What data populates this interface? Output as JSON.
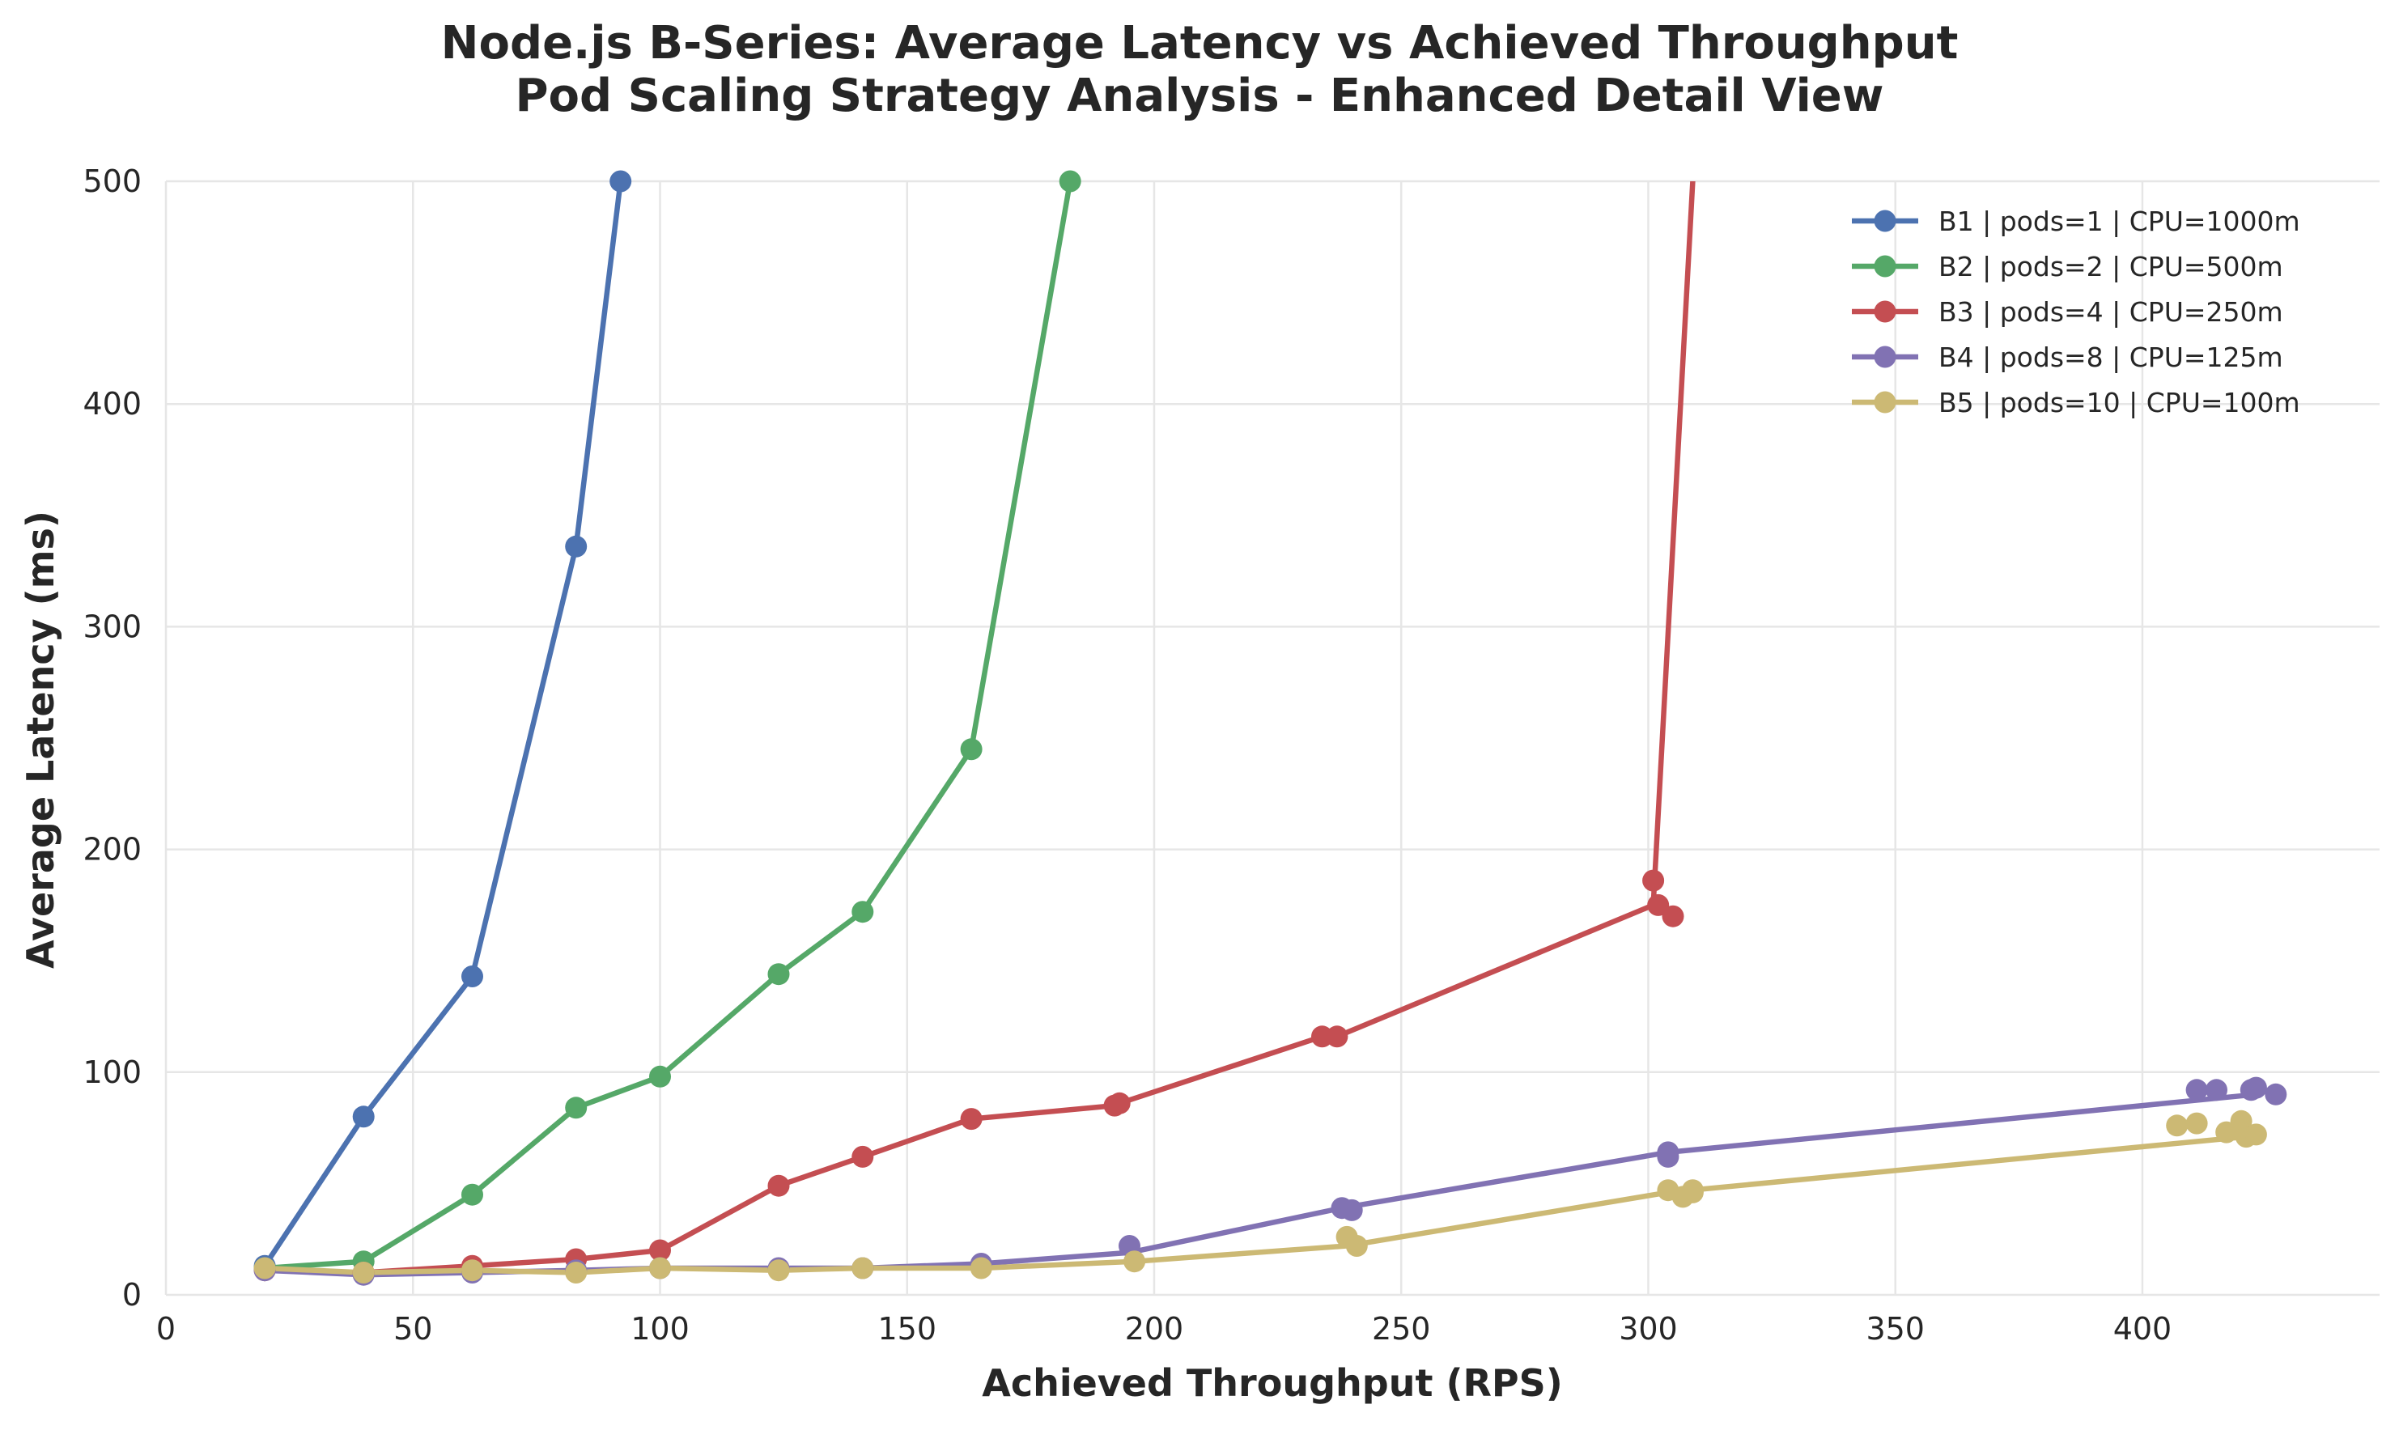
{
  "chart_data": {
    "type": "line",
    "title": "Node.js B-Series: Average Latency vs Achieved Throughput",
    "subtitle": "Pod Scaling Strategy Analysis - Enhanced Detail View",
    "xlabel": "Achieved Throughput (RPS)",
    "ylabel": "Average Latency (ms)",
    "xlim": [
      0,
      448
    ],
    "ylim": [
      0,
      500
    ],
    "xticks": [
      0,
      50,
      100,
      150,
      200,
      250,
      300,
      350,
      400
    ],
    "yticks": [
      0,
      100,
      200,
      300,
      400,
      500
    ],
    "grid": true,
    "legend_position": "top-right",
    "series": [
      {
        "name": "B1 | pods=1 | CPU=1000m",
        "color": "#4c72b0",
        "points": [
          [
            20,
            13
          ],
          [
            40,
            80
          ],
          [
            62,
            143
          ],
          [
            83,
            336
          ],
          [
            92,
            500
          ]
        ],
        "line_path": [
          [
            20,
            13
          ],
          [
            40,
            80
          ],
          [
            62,
            143
          ],
          [
            83,
            336
          ],
          [
            92,
            500
          ]
        ]
      },
      {
        "name": "B2 | pods=2 | CPU=500m",
        "color": "#55a868",
        "points": [
          [
            20,
            12
          ],
          [
            40,
            15
          ],
          [
            62,
            45
          ],
          [
            83,
            84
          ],
          [
            100,
            98
          ],
          [
            124,
            144
          ],
          [
            141,
            172
          ],
          [
            163,
            245
          ],
          [
            183,
            500
          ]
        ],
        "line_path": [
          [
            20,
            12
          ],
          [
            40,
            15
          ],
          [
            62,
            45
          ],
          [
            83,
            84
          ],
          [
            100,
            98
          ],
          [
            124,
            144
          ],
          [
            141,
            172
          ],
          [
            163,
            245
          ],
          [
            183,
            500
          ]
        ]
      },
      {
        "name": "B3 | pods=4 | CPU=250m",
        "color": "#c44e52",
        "points": [
          [
            20,
            11
          ],
          [
            40,
            10
          ],
          [
            62,
            13
          ],
          [
            83,
            16
          ],
          [
            100,
            20
          ],
          [
            124,
            49
          ],
          [
            141,
            62
          ],
          [
            163,
            79
          ],
          [
            192,
            85
          ],
          [
            193,
            86
          ],
          [
            234,
            116
          ],
          [
            237,
            116
          ],
          [
            301,
            186
          ],
          [
            302,
            175
          ],
          [
            305,
            170
          ]
        ],
        "line_path": [
          [
            20,
            11
          ],
          [
            40,
            10
          ],
          [
            62,
            13
          ],
          [
            83,
            16
          ],
          [
            100,
            20
          ],
          [
            124,
            49
          ],
          [
            141,
            62
          ],
          [
            163,
            79
          ],
          [
            192,
            85
          ],
          [
            193,
            86
          ],
          [
            234,
            116
          ],
          [
            237,
            116
          ],
          [
            301,
            175
          ],
          [
            309,
            500
          ]
        ]
      },
      {
        "name": "B4 | pods=8 | CPU=125m",
        "color": "#8172b3",
        "points": [
          [
            20,
            11
          ],
          [
            40,
            9
          ],
          [
            62,
            10
          ],
          [
            83,
            11
          ],
          [
            100,
            12
          ],
          [
            124,
            12
          ],
          [
            141,
            12
          ],
          [
            165,
            14
          ],
          [
            195,
            22
          ],
          [
            238,
            39
          ],
          [
            240,
            38
          ],
          [
            304,
            64
          ],
          [
            304,
            62
          ],
          [
            411,
            92
          ],
          [
            415,
            92
          ],
          [
            422,
            92
          ],
          [
            423,
            93
          ],
          [
            427,
            90
          ]
        ],
        "line_path": [
          [
            20,
            11
          ],
          [
            40,
            9
          ],
          [
            62,
            10
          ],
          [
            83,
            11
          ],
          [
            100,
            12
          ],
          [
            124,
            12
          ],
          [
            141,
            12
          ],
          [
            165,
            14
          ],
          [
            195,
            19
          ],
          [
            238,
            39
          ],
          [
            304,
            64
          ],
          [
            423,
            90
          ]
        ]
      },
      {
        "name": "B5 | pods=10 | CPU=100m",
        "color": "#ccb974",
        "points": [
          [
            20,
            12
          ],
          [
            40,
            10
          ],
          [
            62,
            11
          ],
          [
            83,
            10
          ],
          [
            100,
            12
          ],
          [
            124,
            11
          ],
          [
            141,
            12
          ],
          [
            165,
            12
          ],
          [
            196,
            15
          ],
          [
            239,
            26
          ],
          [
            241,
            22
          ],
          [
            304,
            47
          ],
          [
            307,
            44
          ],
          [
            309,
            46
          ],
          [
            309,
            47
          ],
          [
            407,
            76
          ],
          [
            411,
            77
          ],
          [
            417,
            73
          ],
          [
            420,
            78
          ],
          [
            421,
            71
          ],
          [
            423,
            72
          ]
        ],
        "line_path": [
          [
            20,
            12
          ],
          [
            40,
            10
          ],
          [
            62,
            11
          ],
          [
            83,
            10
          ],
          [
            100,
            12
          ],
          [
            124,
            11
          ],
          [
            141,
            12
          ],
          [
            165,
            12
          ],
          [
            196,
            15
          ],
          [
            239,
            22
          ],
          [
            304,
            46
          ],
          [
            421,
            71
          ]
        ]
      }
    ]
  }
}
